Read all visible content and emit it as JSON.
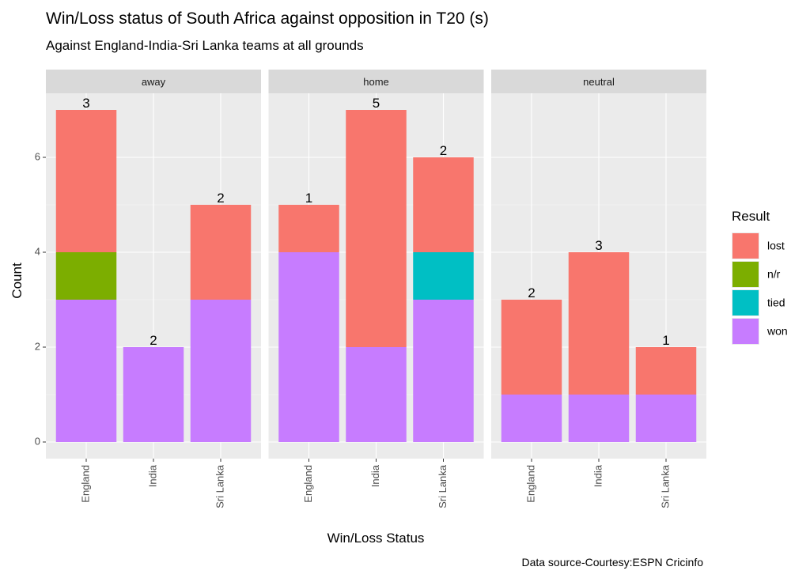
{
  "chart_data": {
    "type": "stacked_bar",
    "title": "Win/Loss status of South Africa against opposition in T20 (s)",
    "subtitle": "Against England-India-Sri Lanka  teams at all grounds",
    "x_label": "Win/Loss Status",
    "y_label": "Count",
    "caption": "Data source-Courtesy:ESPN Cricinfo",
    "legend_title": "Result",
    "facets": [
      "away",
      "home",
      "neutral"
    ],
    "categories": [
      "England",
      "India",
      "Sri Lanka"
    ],
    "series": [
      {
        "name": "lost",
        "color": "#f8766d",
        "values": [
          [
            3,
            null,
            2
          ],
          [
            1,
            5,
            2
          ],
          [
            2,
            3,
            1
          ]
        ]
      },
      {
        "name": "n/r",
        "color": "#7cae00",
        "values": [
          [
            1,
            null,
            null
          ],
          [
            null,
            null,
            null
          ],
          [
            null,
            null,
            null
          ]
        ]
      },
      {
        "name": "tied",
        "color": "#00bfc4",
        "values": [
          [
            null,
            null,
            null
          ],
          [
            null,
            null,
            1
          ],
          [
            null,
            null,
            null
          ]
        ]
      },
      {
        "name": "won",
        "color": "#c77cff",
        "values": [
          [
            3,
            2,
            3
          ],
          [
            4,
            2,
            3
          ],
          [
            1,
            1,
            1
          ]
        ]
      }
    ],
    "ylim": [
      -0.35,
      7.35
    ],
    "yticks": [
      0,
      2,
      4,
      6
    ],
    "minor_yticks": [
      1,
      3,
      5
    ],
    "grid": true,
    "legend_position": "right"
  }
}
